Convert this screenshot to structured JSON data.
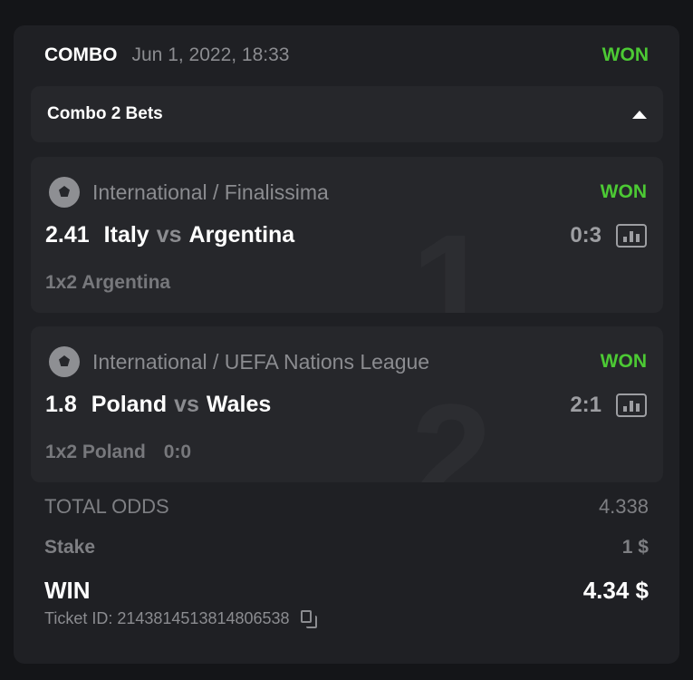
{
  "header": {
    "type": "COMBO",
    "date": "Jun 1, 2022, 18:33",
    "status": "WON"
  },
  "toggle": {
    "label": "Combo 2 Bets",
    "icon": "caret-up-icon"
  },
  "bets": [
    {
      "index": "1",
      "league": "International / Finalissima",
      "status": "WON",
      "odds": "2.41",
      "home": "Italy",
      "vs": "vs",
      "away": "Argentina",
      "score": "0:3",
      "market": "1x2 Argentina",
      "market_score": ""
    },
    {
      "index": "2",
      "league": "International / UEFA Nations League",
      "status": "WON",
      "odds": "1.8",
      "home": "Poland",
      "vs": "vs",
      "away": "Wales",
      "score": "2:1",
      "market": "1x2 Poland",
      "market_score": "0:0"
    }
  ],
  "summary": {
    "total_odds_label": "TOTAL ODDS",
    "total_odds": "4.338",
    "stake_label": "Stake",
    "stake": "1 $",
    "win_label": "WIN",
    "win": "4.34 $",
    "ticket_id": "Ticket ID: 2143814513814806538"
  },
  "colors": {
    "won": "#4cc934",
    "background": "#141518",
    "card": "#1f2024",
    "inner": "#26272b"
  }
}
